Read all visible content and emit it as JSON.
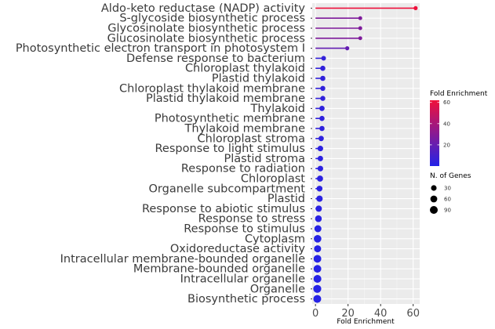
{
  "chart_data": {
    "type": "lollipop",
    "xlabel": "Fold Enrichment",
    "ylabel": "",
    "title": "",
    "xlim": [
      -2,
      64
    ],
    "xticks": [
      "0",
      "20",
      "40",
      "60"
    ],
    "grid": true,
    "categories": [
      "Aldo-keto reductase (NADP) activity",
      "S-glycoside biosynthetic process",
      "Glycosinolate biosynthetic process",
      "Glucosinolate biosynthetic process",
      "Photosynthetic electron transport in photosystem I",
      "Defense response to bacterium",
      "Chloroplast thylakoid",
      "Plastid thylakoid",
      "Chloroplast thylakoid membrane",
      "Plastid thylakoid membrane",
      "Thylakoid",
      "Photosynthetic membrane",
      "Thylakoid membrane",
      "Chloroplast stroma",
      "Response to light stimulus",
      "Plastid stroma",
      "Response to radiation",
      "Chloroplast",
      "Organelle subcompartment",
      "Plastid",
      "Response to abiotic stimulus",
      "Response to stress",
      "Response to stimulus",
      "Cytoplasm",
      "Oxidoreductase activity",
      "Intracellular membrane-bounded organelle",
      "Membrane-bounded organelle",
      "Intracellular organelle",
      "Organelle",
      "Biosynthetic process"
    ],
    "fold_enrichment": [
      61.5,
      27.5,
      27.5,
      27.5,
      19.5,
      5.0,
      4.5,
      4.5,
      4.5,
      4.5,
      4.0,
      4.0,
      4.0,
      3.5,
      3.0,
      3.0,
      3.0,
      2.8,
      2.5,
      2.5,
      2.0,
      1.8,
      1.5,
      1.3,
      1.3,
      1.2,
      1.2,
      1.2,
      1.1,
      1.1
    ],
    "n_genes": [
      8,
      6,
      6,
      6,
      8,
      15,
      22,
      22,
      20,
      20,
      25,
      22,
      22,
      25,
      30,
      28,
      30,
      40,
      35,
      45,
      45,
      55,
      65,
      80,
      65,
      85,
      85,
      90,
      95,
      90
    ],
    "legend": {
      "color": {
        "title": "Fold Enrichment",
        "ticks": [
          "60",
          "40",
          "20"
        ],
        "tick_values": [
          60,
          40,
          20
        ],
        "range": [
          0,
          62
        ],
        "low": "#2323e8",
        "high": "#f0113b"
      },
      "size": {
        "title": "N. of Genes",
        "labels": [
          "30",
          "60",
          "90"
        ],
        "values": [
          30,
          60,
          90
        ]
      }
    }
  }
}
